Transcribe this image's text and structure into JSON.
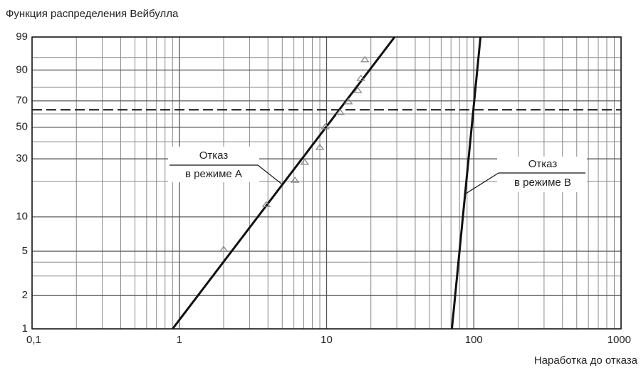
{
  "chart_data": {
    "type": "weibull-plot",
    "title": "Функция распределения Вейбулла",
    "xlabel": "Наработка до отказа",
    "xscale": "log",
    "yscale": "weibull",
    "xlim": [
      0.1,
      1000
    ],
    "ylim": [
      1,
      99
    ],
    "xticks": [
      {
        "value": 0.1,
        "label": "0,1"
      },
      1,
      10,
      100,
      1000
    ],
    "yticks": [
      1,
      2,
      5,
      10,
      30,
      50,
      70,
      90,
      99
    ],
    "xminor": [
      0.2,
      0.3,
      0.4,
      0.5,
      0.6,
      0.7,
      0.8,
      0.9,
      2,
      3,
      4,
      5,
      6,
      7,
      8,
      9,
      20,
      30,
      40,
      50,
      60,
      70,
      80,
      90,
      200,
      300,
      400,
      500,
      600,
      700,
      800,
      900
    ],
    "yminor": [
      3,
      4,
      20,
      40,
      60,
      80,
      95
    ],
    "grid": true,
    "grid_color": "#8a8a8a",
    "reference_line": {
      "y": 63.2,
      "style": "dashed",
      "color": "#111111"
    },
    "series": [
      {
        "annotation": [
          "Отказ",
          "в режиме А"
        ],
        "color": "#111111",
        "x": [
          0.9,
          29
        ],
        "values": [
          1,
          99
        ]
      },
      {
        "annotation": [
          "Отказ",
          "в режиме В"
        ],
        "color": "#111111",
        "x": [
          71,
          111
        ],
        "values": [
          1,
          99
        ]
      }
    ],
    "points": {
      "color": "#8a8a8a",
      "x": [
        2,
        3.9,
        6.1,
        7.1,
        9.0,
        9.8,
        12.4,
        14.1,
        16.3,
        17.1,
        18.2
      ],
      "values": [
        5.2,
        12.8,
        20.4,
        28.3,
        36.5,
        50.4,
        61.2,
        69.4,
        77.7,
        85.6,
        94.3
      ]
    }
  }
}
